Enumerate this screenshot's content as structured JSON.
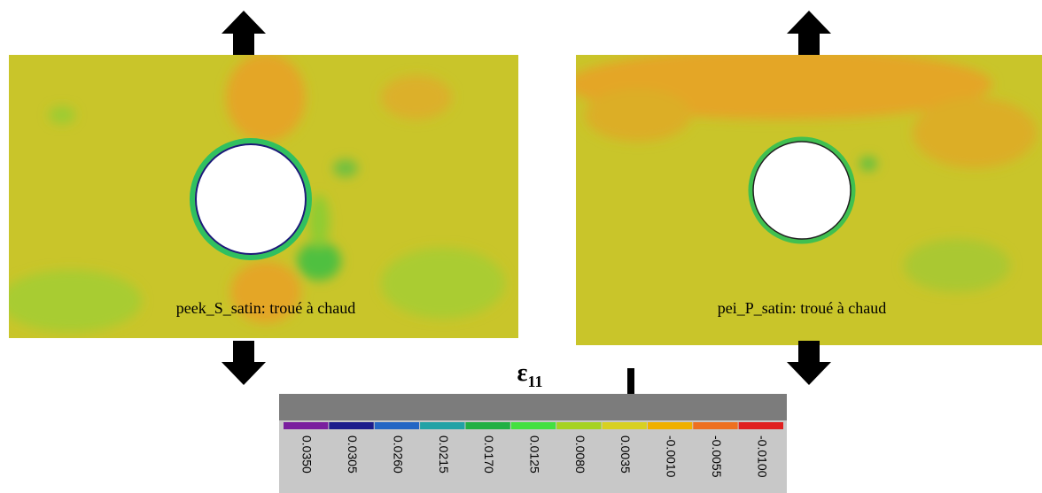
{
  "panels": [
    {
      "label": "peek_S_satin: troué à chaud"
    },
    {
      "label": "pei_P_satin: troué à chaud"
    }
  ],
  "colorbar": {
    "symbol": "ε",
    "subscript": "11",
    "labels": [
      "0.0350",
      "0.0305",
      "0.0260",
      "0.0215",
      "0.0170",
      "0.0125",
      "0.0080",
      "0.0035",
      "-0.0010",
      "-0.0055",
      "-0.0100"
    ]
  }
}
